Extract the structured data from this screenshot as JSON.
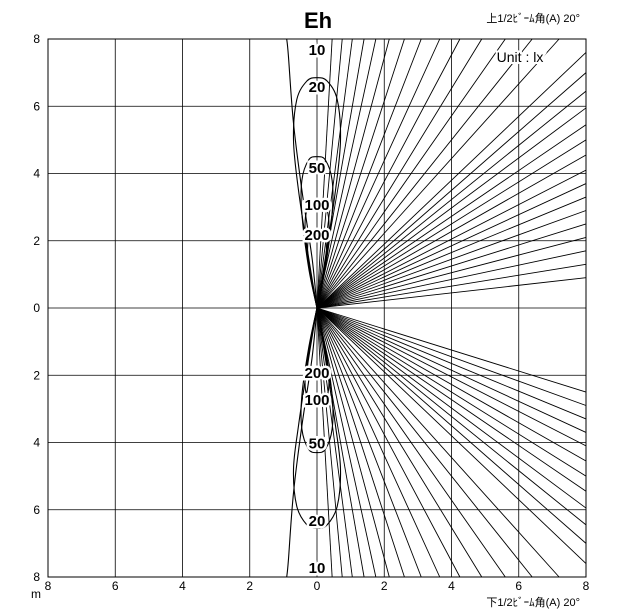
{
  "chart_data": {
    "type": "line",
    "title": "Eh",
    "upper_label": "上1/2ﾋﾞｰﾑ角(A)  20°",
    "lower_label": "下1/2ﾋﾞｰﾑ角(A)  20°",
    "unit_label": "Unit : lx",
    "x_unit": "m",
    "xlim": [
      -8,
      8
    ],
    "ylim": [
      8,
      -8
    ],
    "x_ticks": [
      {
        "value": -8,
        "label": "8"
      },
      {
        "value": -6,
        "label": "6"
      },
      {
        "value": -4,
        "label": "4"
      },
      {
        "value": -2,
        "label": "2"
      },
      {
        "value": 0,
        "label": "0"
      },
      {
        "value": 2,
        "label": "2"
      },
      {
        "value": 4,
        "label": "4"
      },
      {
        "value": 6,
        "label": "6"
      },
      {
        "value": 8,
        "label": "8"
      }
    ],
    "y_ticks": [
      {
        "value": 8,
        "label": "8"
      },
      {
        "value": 6,
        "label": "6"
      },
      {
        "value": 4,
        "label": "4"
      },
      {
        "value": 2,
        "label": "2"
      },
      {
        "value": 0,
        "label": "0"
      },
      {
        "value": -2,
        "label": "2"
      },
      {
        "value": -4,
        "label": "4"
      },
      {
        "value": -6,
        "label": "6"
      },
      {
        "value": -8,
        "label": "8"
      }
    ],
    "grid": true,
    "contours": [
      {
        "label": "10",
        "label_y": 7.7,
        "points": [
          [
            0,
            0
          ],
          [
            -0.15,
            1.5
          ],
          [
            -0.45,
            3.5
          ],
          [
            -0.7,
            5.5
          ],
          [
            -0.85,
            7.5
          ],
          [
            -0.9,
            8
          ]
        ],
        "upper_only": true
      },
      {
        "label": "10",
        "label_y": -7.7,
        "points": [
          [
            0,
            0
          ],
          [
            -0.15,
            -1.5
          ],
          [
            -0.45,
            -3.5
          ],
          [
            -0.7,
            -5.5
          ],
          [
            -0.85,
            -7.5
          ],
          [
            -0.9,
            -8
          ]
        ]
      },
      {
        "label": "20",
        "label_y": 6.6,
        "points": [
          [
            0,
            0
          ],
          [
            -0.25,
            1.5
          ],
          [
            -0.55,
            3.5
          ],
          [
            -0.7,
            5.0
          ],
          [
            -0.6,
            6.2
          ],
          [
            -0.3,
            6.75
          ],
          [
            0,
            6.85
          ],
          [
            0.3,
            6.75
          ],
          [
            0.6,
            6.2
          ],
          [
            0.7,
            5.0
          ],
          [
            0.55,
            3.5
          ],
          [
            0.25,
            1.5
          ],
          [
            0,
            0
          ]
        ]
      },
      {
        "label": "20",
        "label_y": -6.3,
        "points": [
          [
            0,
            0
          ],
          [
            -0.25,
            -1.5
          ],
          [
            -0.55,
            -3.5
          ],
          [
            -0.7,
            -4.8
          ],
          [
            -0.6,
            -5.9
          ],
          [
            -0.3,
            -6.45
          ],
          [
            0,
            -6.55
          ],
          [
            0.3,
            -6.45
          ],
          [
            0.6,
            -5.9
          ],
          [
            0.7,
            -4.8
          ],
          [
            0.55,
            -3.5
          ],
          [
            0.25,
            -1.5
          ],
          [
            0,
            0
          ]
        ]
      },
      {
        "label": "50",
        "label_y": 4.2,
        "points": [
          [
            0,
            0
          ],
          [
            -0.25,
            1.2
          ],
          [
            -0.45,
            2.8
          ],
          [
            -0.45,
            3.8
          ],
          [
            -0.25,
            4.4
          ],
          [
            0,
            4.5
          ],
          [
            0.25,
            4.4
          ],
          [
            0.45,
            3.8
          ],
          [
            0.45,
            2.8
          ],
          [
            0.25,
            1.2
          ],
          [
            0,
            0
          ]
        ]
      },
      {
        "label": "50",
        "label_y": -4.0,
        "points": [
          [
            0,
            0
          ],
          [
            -0.25,
            -1.2
          ],
          [
            -0.45,
            -2.6
          ],
          [
            -0.45,
            -3.6
          ],
          [
            -0.25,
            -4.2
          ],
          [
            0,
            -4.3
          ],
          [
            0.25,
            -4.2
          ],
          [
            0.45,
            -3.6
          ],
          [
            0.45,
            -2.6
          ],
          [
            0.25,
            -1.2
          ],
          [
            0,
            0
          ]
        ]
      },
      {
        "label": "100",
        "label_y": 3.1,
        "points": [
          [
            0,
            0
          ],
          [
            -0.2,
            1.0
          ],
          [
            -0.35,
            2.2
          ],
          [
            -0.3,
            2.9
          ],
          [
            0,
            3.1
          ],
          [
            0.3,
            2.9
          ],
          [
            0.35,
            2.2
          ],
          [
            0.2,
            1.0
          ],
          [
            0,
            0
          ]
        ]
      },
      {
        "label": "100",
        "label_y": -2.7,
        "points": [
          [
            0,
            0
          ],
          [
            -0.2,
            -1.0
          ],
          [
            -0.35,
            -2.0
          ],
          [
            -0.3,
            -2.6
          ],
          [
            0,
            -2.8
          ],
          [
            0.3,
            -2.6
          ],
          [
            0.35,
            -2.0
          ],
          [
            0.2,
            -1.0
          ],
          [
            0,
            0
          ]
        ]
      },
      {
        "label": "200",
        "label_y": 2.2,
        "points": [
          [
            0,
            0
          ],
          [
            -0.15,
            0.8
          ],
          [
            -0.28,
            1.7
          ],
          [
            -0.2,
            2.2
          ],
          [
            0,
            2.3
          ],
          [
            0.2,
            2.2
          ],
          [
            0.28,
            1.7
          ],
          [
            0.15,
            0.8
          ],
          [
            0,
            0
          ]
        ]
      },
      {
        "label": "200",
        "label_y": -1.9,
        "points": [
          [
            0,
            0
          ],
          [
            -0.15,
            -0.8
          ],
          [
            -0.28,
            -1.6
          ],
          [
            -0.2,
            -2.0
          ],
          [
            0,
            -2.1
          ],
          [
            0.2,
            -2.0
          ],
          [
            0.28,
            -1.6
          ],
          [
            0.15,
            -0.8
          ],
          [
            0,
            0
          ]
        ]
      }
    ],
    "upper_rays": [
      [
        0.45,
        8
      ],
      [
        0.75,
        8
      ],
      [
        1.05,
        8
      ],
      [
        1.4,
        8
      ],
      [
        1.75,
        8
      ],
      [
        2.15,
        8
      ],
      [
        2.6,
        8
      ],
      [
        3.1,
        8
      ],
      [
        3.65,
        8
      ],
      [
        4.25,
        8
      ],
      [
        4.9,
        8
      ],
      [
        5.6,
        8
      ],
      [
        6.4,
        8
      ],
      [
        7.2,
        8
      ],
      [
        8,
        7.6
      ],
      [
        8,
        7.0
      ],
      [
        8,
        6.45
      ],
      [
        8,
        5.95
      ],
      [
        8,
        5.45
      ],
      [
        8,
        5.0
      ],
      [
        8,
        4.55
      ],
      [
        8,
        4.1
      ],
      [
        8,
        3.7
      ],
      [
        8,
        3.3
      ],
      [
        8,
        2.9
      ],
      [
        8,
        2.5
      ],
      [
        8,
        2.1
      ],
      [
        8,
        1.7
      ],
      [
        8,
        1.3
      ],
      [
        8,
        0.9
      ]
    ],
    "lower_rays": [
      [
        0.45,
        -8
      ],
      [
        0.75,
        -8
      ],
      [
        1.05,
        -8
      ],
      [
        1.4,
        -8
      ],
      [
        1.75,
        -8
      ],
      [
        2.15,
        -8
      ],
      [
        2.6,
        -8
      ],
      [
        3.1,
        -8
      ],
      [
        3.65,
        -8
      ],
      [
        4.25,
        -8
      ],
      [
        4.9,
        -8
      ],
      [
        5.6,
        -8
      ],
      [
        6.4,
        -8
      ],
      [
        7.2,
        -8
      ],
      [
        8,
        -7.6
      ],
      [
        8,
        -7.0
      ],
      [
        8,
        -6.45
      ],
      [
        8,
        -5.95
      ],
      [
        8,
        -5.45
      ],
      [
        8,
        -5.0
      ],
      [
        8,
        -4.55
      ],
      [
        8,
        -4.1
      ],
      [
        8,
        -3.7
      ],
      [
        8,
        -3.3
      ],
      [
        8,
        -2.9
      ],
      [
        8,
        -2.5
      ]
    ]
  }
}
